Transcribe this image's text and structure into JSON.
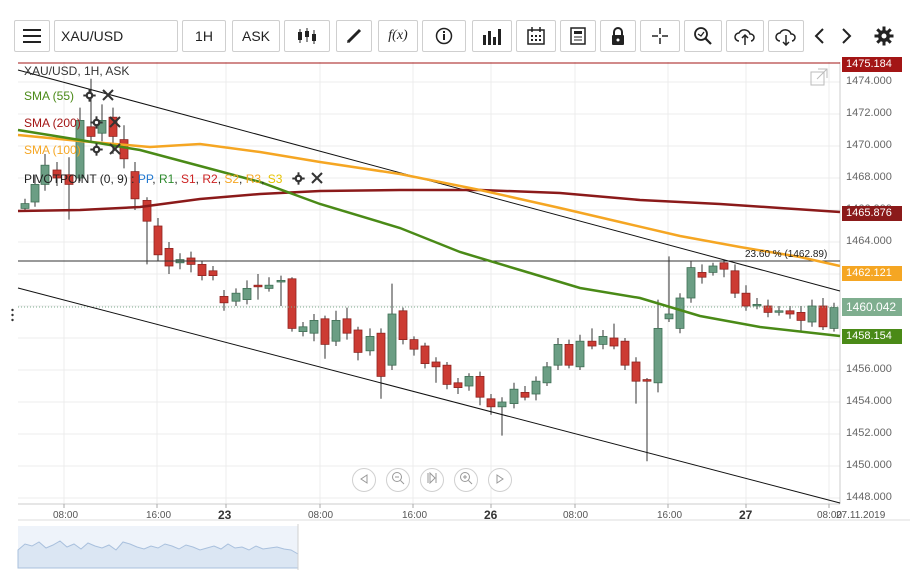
{
  "toolbar": {
    "symbol": "XAU/USD",
    "timeframe": "1H",
    "price_type": "ASK",
    "fx_label": "f(x)"
  },
  "chart": {
    "header": "XAU/USD, 1H, ASK",
    "indicators": [
      {
        "label": "SMA (55)",
        "color": "#4a8a17"
      },
      {
        "label": "SMA (200)",
        "color": "#a31515"
      },
      {
        "label": "SMA (100)",
        "color": "#f5a623"
      }
    ],
    "pivot": {
      "label": "PIVOTPOINT (0, 9)",
      "sep": " : ",
      "levels": [
        {
          "text": "PP",
          "color": "#1f77d0"
        },
        {
          "text": "R1",
          "color": "#2d8a2d"
        },
        {
          "text": "S1",
          "color": "#cc2222"
        },
        {
          "text": "R2",
          "color": "#cc2222"
        },
        {
          "text": "S2",
          "color": "#f5a623"
        },
        {
          "text": "R3",
          "color": "#f5a623"
        },
        {
          "text": "S3",
          "color": "#e6c200"
        }
      ]
    },
    "fib_label": "23.60 % (1462.89)",
    "y_axis": [
      "1474.000",
      "1472.000",
      "1470.000",
      "1468.000",
      "1466.000",
      "1464.000",
      "1462.000",
      "1460.000",
      "1458.000",
      "1456.000",
      "1454.000",
      "1452.000",
      "1450.000",
      "1448.000"
    ],
    "price_tags": [
      {
        "value": "1475.184",
        "color": "#a31515"
      },
      {
        "value": "1465.876",
        "color": "#8b1a1a"
      },
      {
        "value": "1462.121",
        "color": "#f5a623"
      },
      {
        "value": "1460.042",
        "color": "#7fae8f"
      },
      {
        "value": "1458.154",
        "color": "#4a8a17"
      }
    ],
    "x_axis": [
      {
        "text": "08:00",
        "bold": false
      },
      {
        "text": "16:00",
        "bold": false
      },
      {
        "text": "23",
        "bold": true
      },
      {
        "text": "08:00",
        "bold": false
      },
      {
        "text": "16:00",
        "bold": false
      },
      {
        "text": "26",
        "bold": true
      },
      {
        "text": "08:00",
        "bold": false
      },
      {
        "text": "16:00",
        "bold": false
      },
      {
        "text": "27",
        "bold": true
      },
      {
        "text": "08:00",
        "bold": false
      },
      {
        "text": "27.11.2019",
        "bold": false
      }
    ]
  }
}
